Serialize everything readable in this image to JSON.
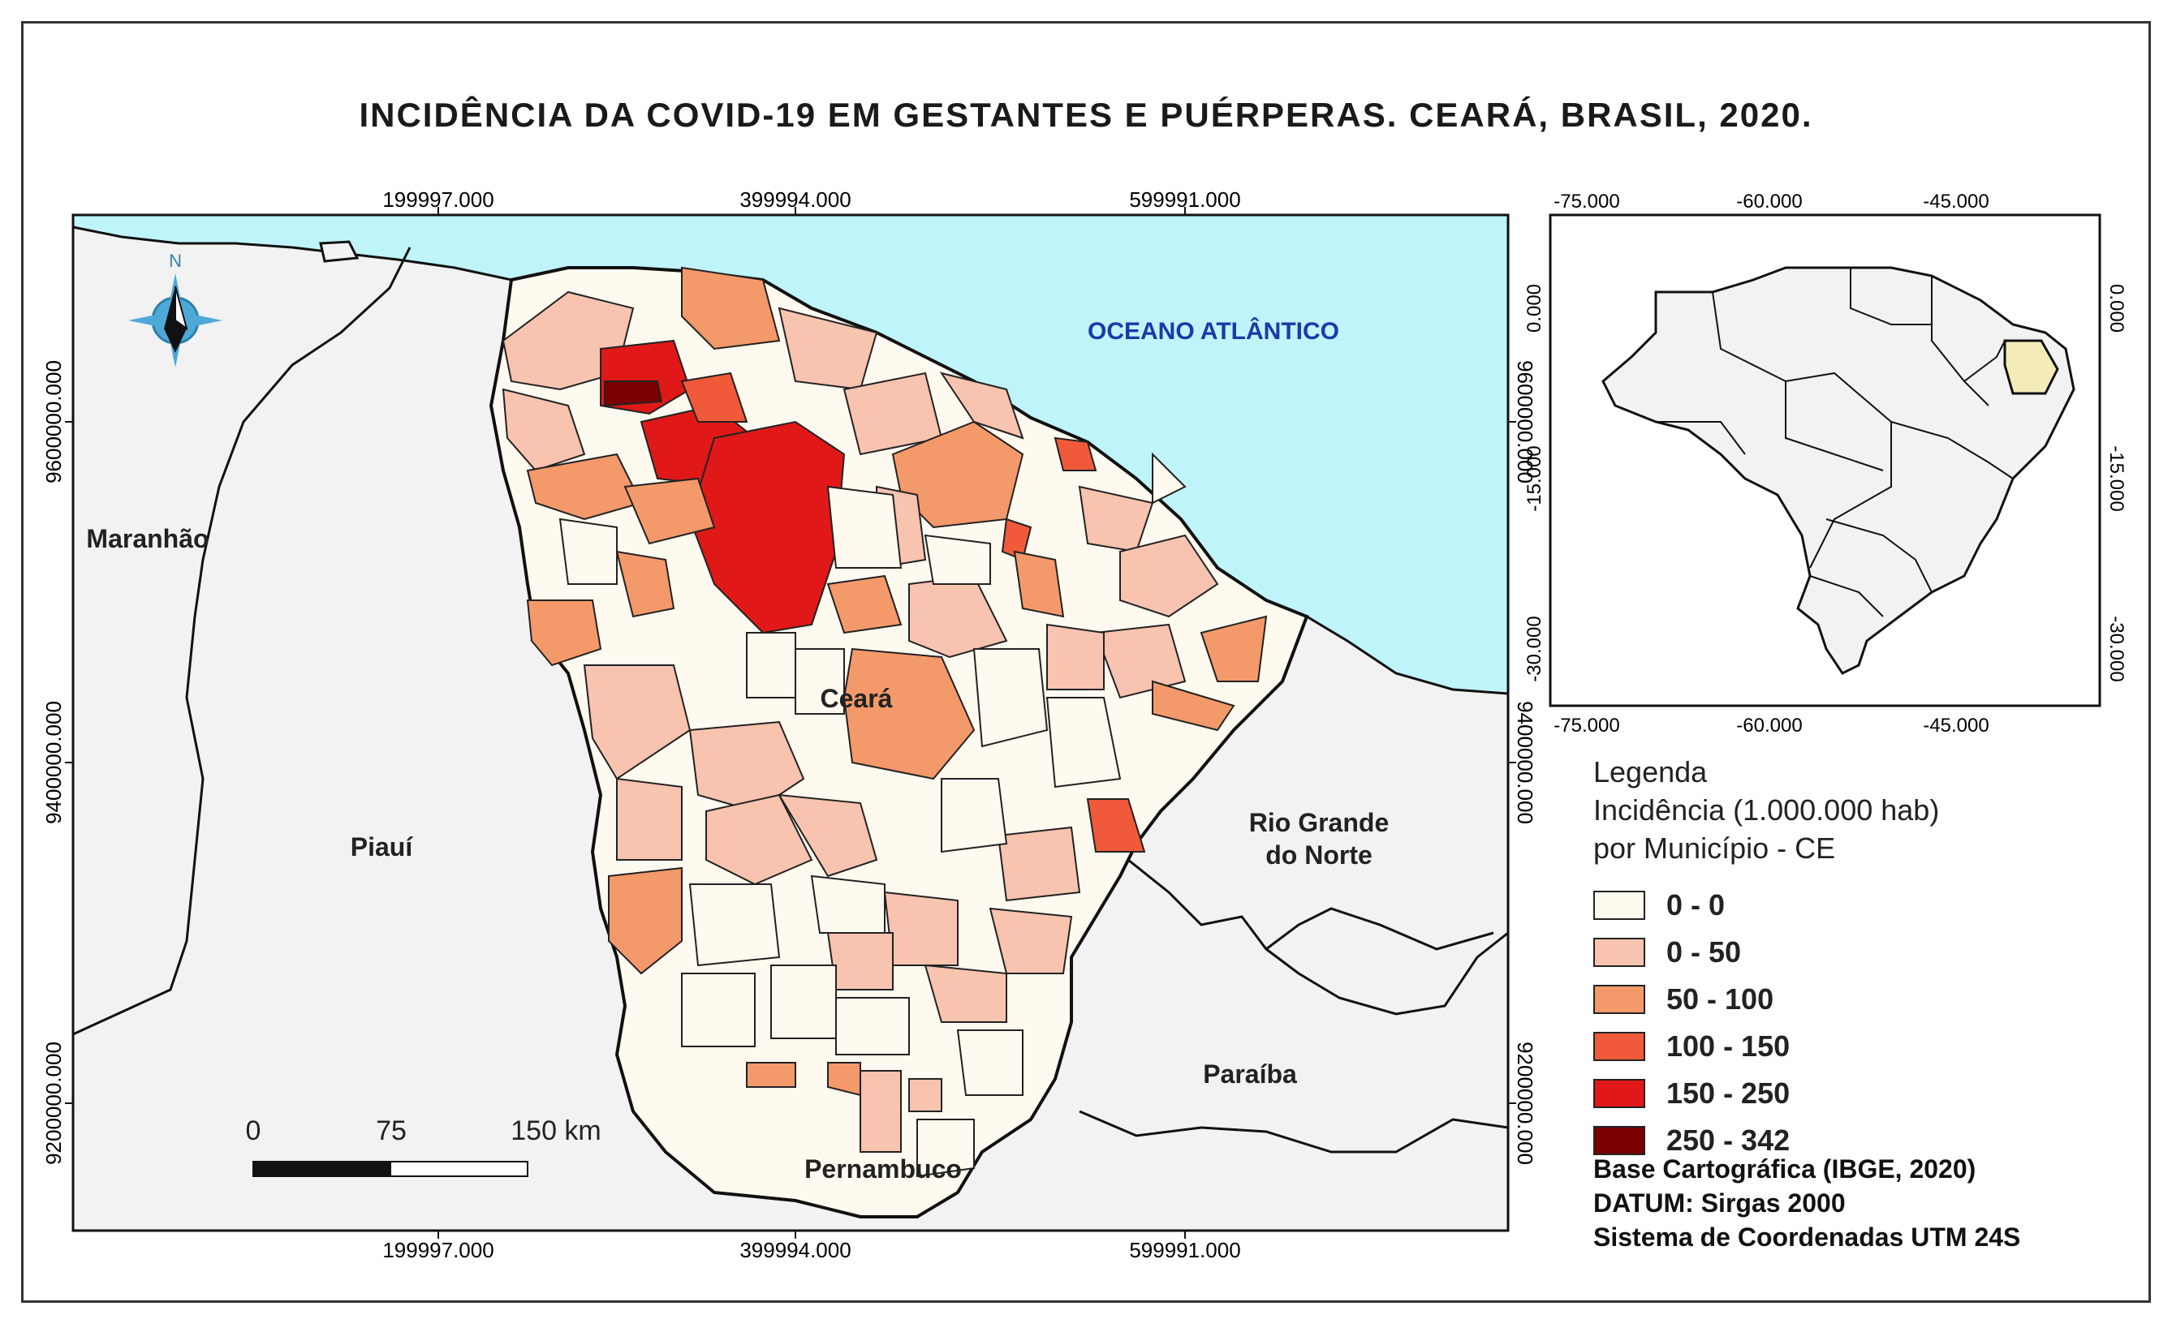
{
  "title": "INCIDÊNCIA DA COVID-19 EM GESTANTES E PUÉRPERAS. CEARÁ, BRASIL, 2020.",
  "main_map": {
    "x_ticks": [
      "199997.000",
      "399994.000",
      "599991.000"
    ],
    "y_ticks": [
      "9600000.000",
      "9400000.000",
      "9200000.000"
    ],
    "ocean_label": "OCEANO ATLÂNTICO",
    "north_label": "N",
    "region_labels": {
      "maranhao": "Maranhão",
      "piaui": "Piauí",
      "ceara": "Ceará",
      "rio_grande_do_norte_1": "Rio Grande",
      "rio_grande_do_norte_2": "do Norte",
      "paraiba": "Paraíba",
      "pernambuco": "Pernambuco"
    },
    "scale_bar": {
      "labels": [
        "0",
        "75",
        "150 km"
      ]
    },
    "colors": {
      "ocean": "#bff4fa",
      "land": "#f2f2f2",
      "border": "#111111"
    }
  },
  "inset_map": {
    "x_ticks": [
      "-75.000",
      "-60.000",
      "-45.000"
    ],
    "y_ticks": [
      "0.000",
      "-15.000",
      "-30.000"
    ],
    "highlight_color": "#f3ecb8"
  },
  "legend": {
    "title_line1": "Legenda",
    "title_line2": "Incidência (1.000.000 hab)",
    "title_line3": "por Município - CE",
    "classes": [
      {
        "label": "0 - 0",
        "color": "#fffaf0"
      },
      {
        "label": "0 - 50",
        "color": "#f8c3af"
      },
      {
        "label": "50 - 100",
        "color": "#f4996a"
      },
      {
        "label": "100 - 150",
        "color": "#f05a3a"
      },
      {
        "label": "150 - 250",
        "color": "#e01818"
      },
      {
        "label": "250 - 342",
        "color": "#7a0000"
      }
    ]
  },
  "credits": {
    "line1": "Base Cartográfica (IBGE, 2020)",
    "line2": "DATUM: Sirgas 2000",
    "line3": "Sistema de Coordenadas UTM 24S"
  }
}
